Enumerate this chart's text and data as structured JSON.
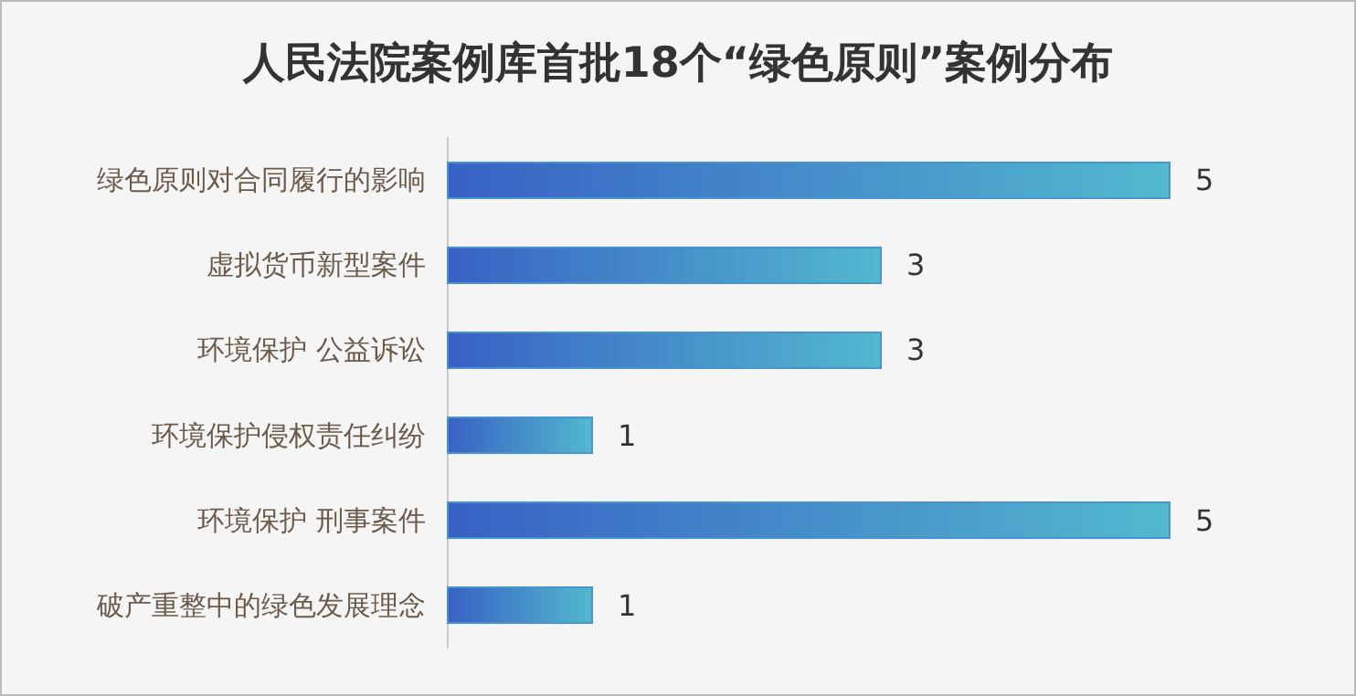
{
  "chart_data": {
    "type": "bar",
    "orientation": "horizontal",
    "title": "人民法院案例库首批18个“绿色原则”案例分布",
    "categories": [
      "绿色原则对合同履行的影响",
      "虚拟货币新型案件",
      "环境保护 公益诉讼",
      "环境保护侵权责任纠纷",
      "环境保护 刑事案件",
      "破产重整中的绿色发展理念"
    ],
    "values": [
      5,
      3,
      3,
      1,
      5,
      1
    ],
    "color": "#4a93cc",
    "data_labels": true
  }
}
